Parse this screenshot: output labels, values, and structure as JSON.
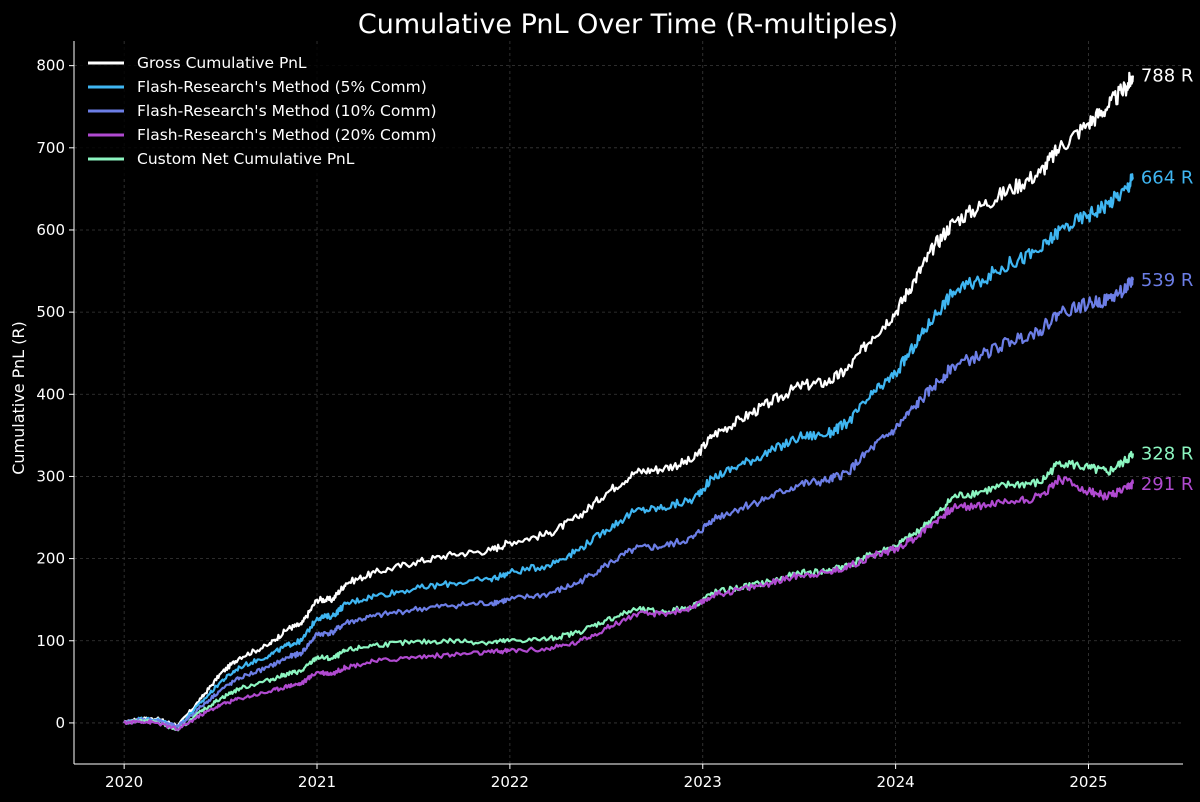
{
  "chart_data": {
    "type": "line",
    "title": "Cumulative PnL Over Time (R-multiples)",
    "xlabel": "",
    "ylabel": "Cumulative PnL (R)",
    "xlim": [
      2019.74,
      2025.49
    ],
    "ylim": [
      -50,
      830
    ],
    "x_ticks": [
      2020,
      2021,
      2022,
      2023,
      2024,
      2025
    ],
    "x_tick_labels": [
      "2020",
      "2021",
      "2022",
      "2023",
      "2024",
      "2025"
    ],
    "y_ticks": [
      0,
      100,
      200,
      300,
      400,
      500,
      600,
      700,
      800
    ],
    "y_tick_labels": [
      "0",
      "100",
      "200",
      "300",
      "400",
      "500",
      "600",
      "700",
      "800"
    ],
    "grid": true,
    "legend_position": "top-left",
    "background_color": "#000000",
    "series": [
      {
        "name": "Gross Cumulative PnL",
        "color": "#ffffff",
        "end_label": "788 R",
        "points": [
          [
            2020.0,
            0
          ],
          [
            2020.08,
            5
          ],
          [
            2020.17,
            5
          ],
          [
            2020.28,
            -3
          ],
          [
            2020.4,
            30
          ],
          [
            2020.5,
            60
          ],
          [
            2020.6,
            80
          ],
          [
            2020.75,
            95
          ],
          [
            2020.85,
            115
          ],
          [
            2020.92,
            120
          ],
          [
            2021.0,
            150
          ],
          [
            2021.08,
            150
          ],
          [
            2021.15,
            170
          ],
          [
            2021.3,
            183
          ],
          [
            2021.5,
            195
          ],
          [
            2021.7,
            205
          ],
          [
            2021.9,
            210
          ],
          [
            2022.0,
            220
          ],
          [
            2022.2,
            230
          ],
          [
            2022.35,
            250
          ],
          [
            2022.5,
            280
          ],
          [
            2022.65,
            305
          ],
          [
            2022.8,
            310
          ],
          [
            2022.95,
            320
          ],
          [
            2023.05,
            350
          ],
          [
            2023.2,
            370
          ],
          [
            2023.35,
            390
          ],
          [
            2023.5,
            410
          ],
          [
            2023.65,
            415
          ],
          [
            2023.75,
            430
          ],
          [
            2023.88,
            470
          ],
          [
            2024.0,
            500
          ],
          [
            2024.1,
            540
          ],
          [
            2024.2,
            580
          ],
          [
            2024.3,
            610
          ],
          [
            2024.45,
            630
          ],
          [
            2024.6,
            650
          ],
          [
            2024.75,
            670
          ],
          [
            2024.85,
            700
          ],
          [
            2025.0,
            730
          ],
          [
            2025.1,
            750
          ],
          [
            2025.2,
            775
          ],
          [
            2025.23,
            788
          ]
        ]
      },
      {
        "name": "Flash-Research's Method (5% Comm)",
        "color": "#3fb6f2",
        "end_label": "664 R",
        "points": [
          [
            2020.0,
            0
          ],
          [
            2020.08,
            5
          ],
          [
            2020.17,
            4
          ],
          [
            2020.28,
            -4
          ],
          [
            2020.4,
            25
          ],
          [
            2020.5,
            50
          ],
          [
            2020.6,
            68
          ],
          [
            2020.75,
            82
          ],
          [
            2020.85,
            95
          ],
          [
            2020.92,
            100
          ],
          [
            2021.0,
            128
          ],
          [
            2021.08,
            130
          ],
          [
            2021.15,
            145
          ],
          [
            2021.3,
            155
          ],
          [
            2021.5,
            163
          ],
          [
            2021.7,
            170
          ],
          [
            2021.9,
            175
          ],
          [
            2022.0,
            183
          ],
          [
            2022.2,
            192
          ],
          [
            2022.35,
            210
          ],
          [
            2022.5,
            235
          ],
          [
            2022.65,
            258
          ],
          [
            2022.8,
            262
          ],
          [
            2022.95,
            272
          ],
          [
            2023.05,
            298
          ],
          [
            2023.2,
            315
          ],
          [
            2023.35,
            330
          ],
          [
            2023.5,
            348
          ],
          [
            2023.65,
            352
          ],
          [
            2023.75,
            365
          ],
          [
            2023.88,
            400
          ],
          [
            2024.0,
            425
          ],
          [
            2024.1,
            460
          ],
          [
            2024.2,
            495
          ],
          [
            2024.3,
            525
          ],
          [
            2024.45,
            540
          ],
          [
            2024.6,
            560
          ],
          [
            2024.75,
            575
          ],
          [
            2024.85,
            600
          ],
          [
            2025.0,
            618
          ],
          [
            2025.1,
            632
          ],
          [
            2025.2,
            650
          ],
          [
            2025.23,
            664
          ]
        ]
      },
      {
        "name": "Flash-Research's Method (10% Comm)",
        "color": "#6c7ee6",
        "end_label": "539 R",
        "points": [
          [
            2020.0,
            0
          ],
          [
            2020.08,
            4
          ],
          [
            2020.17,
            3
          ],
          [
            2020.28,
            -5
          ],
          [
            2020.4,
            20
          ],
          [
            2020.5,
            40
          ],
          [
            2020.6,
            55
          ],
          [
            2020.75,
            68
          ],
          [
            2020.85,
            80
          ],
          [
            2020.92,
            85
          ],
          [
            2021.0,
            108
          ],
          [
            2021.08,
            110
          ],
          [
            2021.15,
            122
          ],
          [
            2021.3,
            130
          ],
          [
            2021.5,
            138
          ],
          [
            2021.7,
            143
          ],
          [
            2021.9,
            146
          ],
          [
            2022.0,
            150
          ],
          [
            2022.2,
            157
          ],
          [
            2022.35,
            170
          ],
          [
            2022.5,
            192
          ],
          [
            2022.65,
            212
          ],
          [
            2022.8,
            215
          ],
          [
            2022.95,
            225
          ],
          [
            2023.05,
            248
          ],
          [
            2023.2,
            262
          ],
          [
            2023.35,
            275
          ],
          [
            2023.5,
            290
          ],
          [
            2023.65,
            295
          ],
          [
            2023.75,
            305
          ],
          [
            2023.88,
            335
          ],
          [
            2024.0,
            358
          ],
          [
            2024.1,
            385
          ],
          [
            2024.2,
            410
          ],
          [
            2024.3,
            435
          ],
          [
            2024.45,
            448
          ],
          [
            2024.6,
            465
          ],
          [
            2024.75,
            478
          ],
          [
            2024.85,
            500
          ],
          [
            2025.0,
            510
          ],
          [
            2025.1,
            515
          ],
          [
            2025.2,
            530
          ],
          [
            2025.23,
            539
          ]
        ]
      },
      {
        "name": "Flash-Research's Method (20% Comm)",
        "color": "#b04ad0",
        "end_label": "291 R",
        "points": [
          [
            2020.0,
            0
          ],
          [
            2020.08,
            2
          ],
          [
            2020.17,
            0
          ],
          [
            2020.28,
            -8
          ],
          [
            2020.4,
            10
          ],
          [
            2020.5,
            22
          ],
          [
            2020.6,
            30
          ],
          [
            2020.75,
            38
          ],
          [
            2020.85,
            45
          ],
          [
            2020.92,
            48
          ],
          [
            2021.0,
            62
          ],
          [
            2021.08,
            60
          ],
          [
            2021.15,
            68
          ],
          [
            2021.3,
            75
          ],
          [
            2021.5,
            80
          ],
          [
            2021.7,
            83
          ],
          [
            2021.9,
            86
          ],
          [
            2022.0,
            88
          ],
          [
            2022.2,
            90
          ],
          [
            2022.35,
            98
          ],
          [
            2022.5,
            115
          ],
          [
            2022.65,
            132
          ],
          [
            2022.8,
            133
          ],
          [
            2022.95,
            140
          ],
          [
            2023.05,
            155
          ],
          [
            2023.2,
            163
          ],
          [
            2023.35,
            170
          ],
          [
            2023.5,
            180
          ],
          [
            2023.65,
            183
          ],
          [
            2023.75,
            190
          ],
          [
            2023.88,
            203
          ],
          [
            2024.0,
            212
          ],
          [
            2024.1,
            225
          ],
          [
            2024.2,
            245
          ],
          [
            2024.3,
            262
          ],
          [
            2024.45,
            265
          ],
          [
            2024.6,
            270
          ],
          [
            2024.75,
            275
          ],
          [
            2024.85,
            298
          ],
          [
            2025.0,
            282
          ],
          [
            2025.1,
            275
          ],
          [
            2025.2,
            285
          ],
          [
            2025.23,
            291
          ]
        ]
      },
      {
        "name": "Custom Net Cumulative PnL",
        "color": "#8cf5c0",
        "end_label": "328 R",
        "points": [
          [
            2020.0,
            0
          ],
          [
            2020.08,
            3
          ],
          [
            2020.17,
            1
          ],
          [
            2020.28,
            -9
          ],
          [
            2020.4,
            14
          ],
          [
            2020.5,
            30
          ],
          [
            2020.6,
            42
          ],
          [
            2020.75,
            52
          ],
          [
            2020.85,
            60
          ],
          [
            2020.92,
            63
          ],
          [
            2021.0,
            80
          ],
          [
            2021.08,
            78
          ],
          [
            2021.15,
            88
          ],
          [
            2021.3,
            95
          ],
          [
            2021.5,
            98
          ],
          [
            2021.7,
            100
          ],
          [
            2021.9,
            98
          ],
          [
            2022.0,
            100
          ],
          [
            2022.2,
            102
          ],
          [
            2022.35,
            110
          ],
          [
            2022.5,
            125
          ],
          [
            2022.65,
            138
          ],
          [
            2022.8,
            135
          ],
          [
            2022.95,
            142
          ],
          [
            2023.05,
            158
          ],
          [
            2023.2,
            165
          ],
          [
            2023.35,
            172
          ],
          [
            2023.5,
            182
          ],
          [
            2023.65,
            185
          ],
          [
            2023.75,
            192
          ],
          [
            2023.88,
            205
          ],
          [
            2024.0,
            215
          ],
          [
            2024.1,
            230
          ],
          [
            2024.2,
            250
          ],
          [
            2024.3,
            275
          ],
          [
            2024.45,
            282
          ],
          [
            2024.6,
            290
          ],
          [
            2024.75,
            292
          ],
          [
            2024.85,
            318
          ],
          [
            2025.0,
            310
          ],
          [
            2025.1,
            305
          ],
          [
            2025.2,
            320
          ],
          [
            2025.23,
            328
          ]
        ]
      }
    ]
  }
}
